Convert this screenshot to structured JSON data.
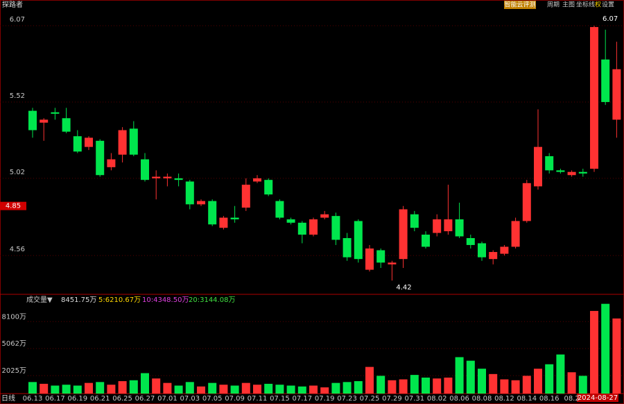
{
  "app_header": {
    "stock_name": "探路者",
    "buttons": [
      "智能云评测",
      "周期",
      "主图",
      "坐标线",
      "权",
      "设置"
    ],
    "period": "日线",
    "cursor_date": "2024-08-27"
  },
  "chart_data": [
    {
      "type": "candlestick",
      "log_scale": true,
      "grid": true,
      "up_color": "#ff3232",
      "down_color": "#00e64d",
      "categories": [
        "06.13",
        null,
        "06.17",
        null,
        "06.19",
        null,
        "06.21",
        null,
        "06.25",
        null,
        "06.27",
        null,
        "07.01",
        null,
        "07.03",
        null,
        "07.05",
        null,
        "07.09",
        null,
        "07.11",
        null,
        "07.15",
        null,
        "07.17",
        null,
        "07.19",
        null,
        "07.23",
        null,
        "07.25",
        null,
        "07.29",
        null,
        "07.31",
        null,
        "08.02",
        null,
        "08.06",
        null,
        "08.08",
        null,
        "08.12",
        null,
        "08.14",
        null,
        "08.16",
        null,
        "08.2",
        null,
        null,
        null,
        null
      ],
      "open": [
        5.46,
        5.38,
        5.45,
        5.41,
        5.29,
        5.22,
        5.26,
        5.09,
        5.17,
        5.34,
        5.14,
        5.02,
        5.02,
        5.02,
        5.0,
        4.86,
        4.88,
        4.72,
        4.78,
        4.84,
        5.0,
        5.01,
        4.88,
        4.77,
        4.75,
        4.68,
        4.78,
        4.79,
        4.66,
        4.76,
        4.48,
        4.59,
        4.51,
        4.54,
        4.8,
        4.68,
        4.69,
        4.7,
        4.77,
        4.66,
        4.63,
        4.54,
        4.57,
        4.61,
        4.76,
        4.97,
        5.16,
        5.07,
        5.04,
        5.06,
        5.08,
        5.82,
        5.4
      ],
      "high": [
        5.48,
        5.41,
        5.48,
        5.48,
        5.33,
        5.29,
        5.27,
        5.18,
        5.35,
        5.39,
        5.18,
        5.07,
        5.05,
        5.05,
        5.01,
        4.89,
        4.89,
        4.79,
        4.85,
        5.02,
        5.04,
        5.02,
        4.89,
        4.78,
        4.76,
        4.78,
        4.82,
        4.81,
        4.69,
        4.77,
        4.62,
        4.6,
        4.53,
        4.85,
        4.82,
        4.7,
        4.8,
        4.98,
        4.87,
        4.68,
        4.64,
        4.59,
        4.62,
        4.78,
        5.01,
        5.47,
        5.18,
        5.08,
        5.07,
        5.08,
        6.07,
        6.04,
        5.95
      ],
      "low": [
        5.28,
        5.26,
        5.4,
        5.31,
        5.18,
        5.2,
        5.03,
        5.07,
        5.12,
        5.16,
        5.0,
        4.89,
        4.97,
        4.97,
        4.83,
        4.85,
        4.73,
        4.71,
        4.75,
        4.82,
        4.99,
        4.91,
        4.77,
        4.74,
        4.63,
        4.67,
        4.77,
        4.62,
        4.53,
        4.52,
        4.47,
        4.49,
        4.42,
        4.49,
        4.7,
        4.6,
        4.67,
        4.68,
        4.66,
        4.6,
        4.53,
        4.51,
        4.56,
        4.6,
        4.75,
        4.95,
        5.05,
        5.05,
        5.03,
        5.03,
        5.06,
        5.5,
        5.28
      ],
      "close": [
        5.33,
        5.4,
        5.44,
        5.32,
        5.19,
        5.28,
        5.04,
        5.14,
        5.33,
        5.17,
        5.01,
        5.03,
        5.03,
        5.01,
        4.86,
        4.88,
        4.74,
        4.78,
        4.77,
        4.98,
        5.02,
        4.92,
        4.78,
        4.75,
        4.68,
        4.77,
        4.8,
        4.65,
        4.55,
        4.54,
        4.6,
        4.52,
        4.52,
        4.83,
        4.72,
        4.61,
        4.77,
        4.77,
        4.67,
        4.62,
        4.55,
        4.58,
        4.61,
        4.76,
        4.99,
        5.22,
        5.07,
        5.06,
        5.06,
        5.05,
        6.06,
        5.52,
        5.75
      ],
      "ylim": [
        4.36,
        6.16
      ],
      "yticks": [
        4.56,
        5.02,
        5.52,
        6.07
      ],
      "current_price": 4.85,
      "high_label": 6.07,
      "low_label": 4.42
    },
    {
      "type": "volume",
      "title": "成交量▼",
      "legend": [
        "8451.75万",
        "5:6210.67万",
        "10:4348.50万",
        "20:3144.08万"
      ],
      "legend_colors": [
        "#dddddd",
        "#ffd700",
        "#e040e0",
        "#40e040"
      ],
      "values": [
        1300,
        1100,
        900,
        1000,
        900,
        1200,
        1300,
        1000,
        1400,
        1500,
        2300,
        1700,
        1200,
        900,
        1300,
        800,
        1200,
        1000,
        900,
        1200,
        1000,
        1100,
        1000,
        900,
        800,
        900,
        700,
        1200,
        1300,
        1400,
        3000,
        2000,
        1500,
        1600,
        2100,
        1800,
        1700,
        1800,
        4100,
        3700,
        2800,
        2200,
        1600,
        1500,
        2000,
        2800,
        3300,
        4400,
        2400,
        2000,
        9300,
        10100,
        8451.75
      ],
      "ylim": [
        0,
        10700
      ],
      "yticks": [
        {
          "value": 2025,
          "label": "2025万"
        },
        {
          "value": 5062,
          "label": "5062万"
        },
        {
          "value": 8100,
          "label": "8100万"
        }
      ]
    }
  ]
}
